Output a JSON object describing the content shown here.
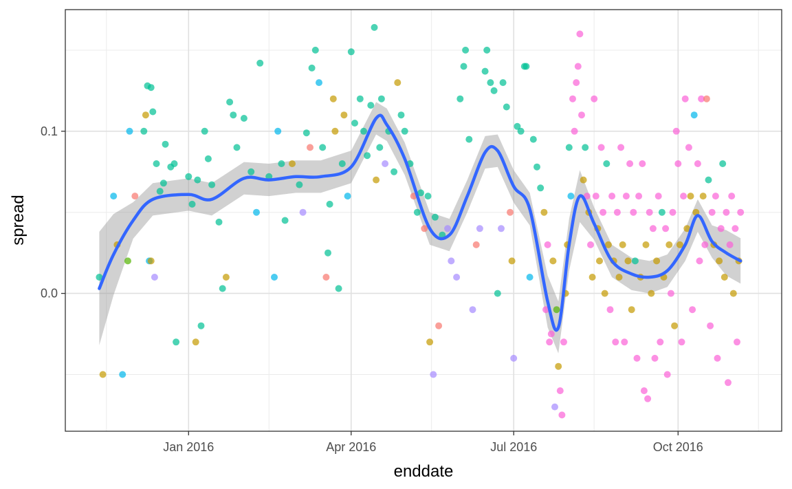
{
  "chart_data": {
    "type": "scatter",
    "title": "",
    "xlabel": "enddate",
    "ylabel": "spread",
    "x_ticks": [
      "Jan 2016",
      "Apr 2016",
      "Jul 2016",
      "Oct 2016"
    ],
    "x_tick_dates": [
      "2016-01-01",
      "2016-04-01",
      "2016-07-01",
      "2016-10-01"
    ],
    "x_minor_dates": [
      "2015-11-16",
      "2016-02-15",
      "2016-05-16",
      "2016-08-15",
      "2016-11-15"
    ],
    "xlim": [
      "2015-10-24",
      "2016-11-28"
    ],
    "y_ticks": [
      0.0,
      0.1
    ],
    "y_tick_labels": [
      "0.0",
      "0.1"
    ],
    "y_minor": [
      -0.05,
      0.05,
      0.15
    ],
    "ylim": [
      -0.085,
      0.175
    ],
    "grid": true,
    "legend": "none",
    "point_colors": [
      "#F8766D",
      "#C49A00",
      "#53B400",
      "#00C094",
      "#00B6EB",
      "#A58AFF",
      "#FB61D7"
    ],
    "points": [
      [
        "2015-11-12",
        0.01,
        3
      ],
      [
        "2015-11-14",
        -0.05,
        1
      ],
      [
        "2015-11-20",
        0.06,
        4
      ],
      [
        "2015-11-22",
        0.03,
        1
      ],
      [
        "2015-11-25",
        -0.05,
        4
      ],
      [
        "2015-11-28",
        0.02,
        2
      ],
      [
        "2015-11-29",
        0.1,
        4
      ],
      [
        "2015-12-02",
        0.06,
        0
      ],
      [
        "2015-12-07",
        0.1,
        3
      ],
      [
        "2015-12-08",
        0.11,
        1
      ],
      [
        "2015-12-09",
        0.128,
        3
      ],
      [
        "2015-12-10",
        0.02,
        4
      ],
      [
        "2015-12-11",
        0.02,
        1
      ],
      [
        "2015-12-11",
        0.127,
        3
      ],
      [
        "2015-12-12",
        0.112,
        3
      ],
      [
        "2015-12-13",
        0.01,
        5
      ],
      [
        "2015-12-14",
        0.08,
        3
      ],
      [
        "2015-12-16",
        0.063,
        3
      ],
      [
        "2015-12-18",
        0.068,
        3
      ],
      [
        "2015-12-19",
        0.092,
        3
      ],
      [
        "2015-12-22",
        0.078,
        3
      ],
      [
        "2015-12-24",
        0.08,
        3
      ],
      [
        "2015-12-25",
        -0.03,
        3
      ],
      [
        "2016-01-01",
        0.072,
        3
      ],
      [
        "2016-01-03",
        0.055,
        3
      ],
      [
        "2016-01-05",
        -0.03,
        1
      ],
      [
        "2016-01-06",
        0.07,
        3
      ],
      [
        "2016-01-08",
        -0.02,
        3
      ],
      [
        "2016-01-10",
        0.1,
        3
      ],
      [
        "2016-01-12",
        0.083,
        3
      ],
      [
        "2016-01-14",
        0.067,
        3
      ],
      [
        "2016-01-18",
        0.044,
        3
      ],
      [
        "2016-01-20",
        0.003,
        3
      ],
      [
        "2016-01-22",
        0.01,
        1
      ],
      [
        "2016-01-24",
        0.118,
        3
      ],
      [
        "2016-01-26",
        0.11,
        3
      ],
      [
        "2016-01-28",
        0.09,
        3
      ],
      [
        "2016-02-01",
        0.108,
        3
      ],
      [
        "2016-02-05",
        0.075,
        3
      ],
      [
        "2016-02-08",
        0.05,
        4
      ],
      [
        "2016-02-10",
        0.142,
        3
      ],
      [
        "2016-02-15",
        0.072,
        3
      ],
      [
        "2016-02-18",
        0.01,
        4
      ],
      [
        "2016-02-20",
        0.1,
        4
      ],
      [
        "2016-02-22",
        0.08,
        3
      ],
      [
        "2016-02-24",
        0.045,
        3
      ],
      [
        "2016-02-28",
        0.08,
        1
      ],
      [
        "2016-03-03",
        0.067,
        3
      ],
      [
        "2016-03-05",
        0.05,
        5
      ],
      [
        "2016-03-07",
        0.099,
        3
      ],
      [
        "2016-03-09",
        0.09,
        0
      ],
      [
        "2016-03-10",
        0.139,
        3
      ],
      [
        "2016-03-12",
        0.15,
        3
      ],
      [
        "2016-03-14",
        0.13,
        4
      ],
      [
        "2016-03-16",
        0.09,
        3
      ],
      [
        "2016-03-18",
        0.01,
        0
      ],
      [
        "2016-03-19",
        0.025,
        3
      ],
      [
        "2016-03-20",
        0.055,
        3
      ],
      [
        "2016-03-22",
        0.12,
        1
      ],
      [
        "2016-03-23",
        0.1,
        1
      ],
      [
        "2016-03-25",
        0.003,
        3
      ],
      [
        "2016-03-27",
        0.08,
        3
      ],
      [
        "2016-03-28",
        0.11,
        1
      ],
      [
        "2016-03-30",
        0.06,
        4
      ],
      [
        "2016-04-01",
        0.149,
        3
      ],
      [
        "2016-04-03",
        0.105,
        3
      ],
      [
        "2016-04-06",
        0.12,
        3
      ],
      [
        "2016-04-08",
        0.1,
        3
      ],
      [
        "2016-04-10",
        0.085,
        3
      ],
      [
        "2016-04-12",
        0.116,
        3
      ],
      [
        "2016-04-14",
        0.164,
        3
      ],
      [
        "2016-04-15",
        0.07,
        1
      ],
      [
        "2016-04-17",
        0.09,
        3
      ],
      [
        "2016-04-18",
        0.12,
        3
      ],
      [
        "2016-04-20",
        0.08,
        5
      ],
      [
        "2016-04-22",
        0.1,
        3
      ],
      [
        "2016-04-25",
        0.075,
        3
      ],
      [
        "2016-04-27",
        0.13,
        1
      ],
      [
        "2016-04-29",
        0.11,
        3
      ],
      [
        "2016-05-01",
        0.1,
        3
      ],
      [
        "2016-05-04",
        0.08,
        3
      ],
      [
        "2016-05-06",
        0.06,
        0
      ],
      [
        "2016-05-08",
        0.05,
        3
      ],
      [
        "2016-05-10",
        0.062,
        3
      ],
      [
        "2016-05-12",
        0.04,
        0
      ],
      [
        "2016-05-14",
        0.06,
        3
      ],
      [
        "2016-05-15",
        -0.03,
        1
      ],
      [
        "2016-05-17",
        -0.05,
        5
      ],
      [
        "2016-05-18",
        0.047,
        3
      ],
      [
        "2016-05-20",
        -0.02,
        0
      ],
      [
        "2016-05-22",
        0.036,
        3
      ],
      [
        "2016-05-25",
        0.04,
        5
      ],
      [
        "2016-05-27",
        0.02,
        5
      ],
      [
        "2016-05-30",
        0.01,
        5
      ],
      [
        "2016-06-01",
        0.12,
        3
      ],
      [
        "2016-06-03",
        0.14,
        3
      ],
      [
        "2016-06-04",
        0.15,
        3
      ],
      [
        "2016-06-06",
        0.095,
        3
      ],
      [
        "2016-06-08",
        -0.01,
        5
      ],
      [
        "2016-06-10",
        0.03,
        0
      ],
      [
        "2016-06-12",
        0.04,
        5
      ],
      [
        "2016-06-15",
        0.137,
        3
      ],
      [
        "2016-06-16",
        0.15,
        3
      ],
      [
        "2016-06-18",
        0.13,
        3
      ],
      [
        "2016-06-20",
        0.125,
        3
      ],
      [
        "2016-06-22",
        0.0,
        3
      ],
      [
        "2016-06-24",
        0.04,
        5
      ],
      [
        "2016-06-25",
        0.13,
        3
      ],
      [
        "2016-06-27",
        0.115,
        3
      ],
      [
        "2016-06-29",
        0.05,
        0
      ],
      [
        "2016-06-30",
        0.02,
        1
      ],
      [
        "2016-07-01",
        -0.04,
        5
      ],
      [
        "2016-07-03",
        0.103,
        3
      ],
      [
        "2016-07-05",
        0.1,
        3
      ],
      [
        "2016-07-07",
        0.14,
        3
      ],
      [
        "2016-07-08",
        0.14,
        3
      ],
      [
        "2016-07-10",
        0.01,
        4
      ],
      [
        "2016-07-12",
        0.095,
        3
      ],
      [
        "2016-07-14",
        0.078,
        3
      ],
      [
        "2016-07-16",
        0.065,
        3
      ],
      [
        "2016-07-18",
        0.05,
        1
      ],
      [
        "2016-07-19",
        -0.01,
        6
      ],
      [
        "2016-07-20",
        0.03,
        6
      ],
      [
        "2016-07-21",
        -0.03,
        6
      ],
      [
        "2016-07-22",
        -0.025,
        6
      ],
      [
        "2016-07-23",
        0.02,
        1
      ],
      [
        "2016-07-24",
        -0.07,
        5
      ],
      [
        "2016-07-25",
        -0.01,
        2
      ],
      [
        "2016-07-26",
        -0.045,
        1
      ],
      [
        "2016-07-27",
        -0.06,
        6
      ],
      [
        "2016-07-28",
        -0.075,
        6
      ],
      [
        "2016-07-29",
        -0.03,
        6
      ],
      [
        "2016-07-30",
        0.0,
        1
      ],
      [
        "2016-07-31",
        0.03,
        1
      ],
      [
        "2016-08-01",
        0.09,
        3
      ],
      [
        "2016-08-02",
        0.06,
        4
      ],
      [
        "2016-08-03",
        0.12,
        6
      ],
      [
        "2016-08-04",
        0.1,
        6
      ],
      [
        "2016-08-05",
        0.13,
        6
      ],
      [
        "2016-08-06",
        0.14,
        6
      ],
      [
        "2016-08-07",
        0.16,
        6
      ],
      [
        "2016-08-08",
        0.11,
        6
      ],
      [
        "2016-08-09",
        0.07,
        1
      ],
      [
        "2016-08-10",
        0.09,
        3
      ],
      [
        "2016-08-11",
        0.06,
        6
      ],
      [
        "2016-08-12",
        0.05,
        1
      ],
      [
        "2016-08-13",
        0.03,
        6
      ],
      [
        "2016-08-14",
        0.01,
        1
      ],
      [
        "2016-08-15",
        0.12,
        6
      ],
      [
        "2016-08-16",
        0.06,
        6
      ],
      [
        "2016-08-17",
        0.04,
        1
      ],
      [
        "2016-08-18",
        0.02,
        1
      ],
      [
        "2016-08-19",
        0.09,
        6
      ],
      [
        "2016-08-20",
        0.05,
        6
      ],
      [
        "2016-08-21",
        0.0,
        1
      ],
      [
        "2016-08-22",
        0.08,
        3
      ],
      [
        "2016-08-23",
        0.03,
        1
      ],
      [
        "2016-08-24",
        -0.01,
        6
      ],
      [
        "2016-08-25",
        0.06,
        6
      ],
      [
        "2016-08-26",
        0.02,
        1
      ],
      [
        "2016-08-27",
        -0.03,
        6
      ],
      [
        "2016-08-28",
        0.05,
        6
      ],
      [
        "2016-08-29",
        0.01,
        1
      ],
      [
        "2016-08-30",
        0.09,
        6
      ],
      [
        "2016-08-31",
        0.03,
        1
      ],
      [
        "2016-09-01",
        -0.03,
        6
      ],
      [
        "2016-09-02",
        0.06,
        6
      ],
      [
        "2016-09-03",
        0.02,
        1
      ],
      [
        "2016-09-04",
        0.08,
        6
      ],
      [
        "2016-09-05",
        -0.01,
        1
      ],
      [
        "2016-09-06",
        0.05,
        6
      ],
      [
        "2016-09-07",
        0.02,
        3
      ],
      [
        "2016-09-08",
        -0.04,
        6
      ],
      [
        "2016-09-09",
        0.06,
        6
      ],
      [
        "2016-09-10",
        0.01,
        1
      ],
      [
        "2016-09-11",
        0.08,
        6
      ],
      [
        "2016-09-12",
        -0.06,
        6
      ],
      [
        "2016-09-13",
        0.03,
        1
      ],
      [
        "2016-09-14",
        -0.065,
        6
      ],
      [
        "2016-09-15",
        0.05,
        6
      ],
      [
        "2016-09-16",
        0.0,
        1
      ],
      [
        "2016-09-17",
        0.04,
        6
      ],
      [
        "2016-09-18",
        -0.04,
        6
      ],
      [
        "2016-09-19",
        0.02,
        1
      ],
      [
        "2016-09-20",
        0.06,
        6
      ],
      [
        "2016-09-21",
        -0.03,
        6
      ],
      [
        "2016-09-22",
        0.05,
        3
      ],
      [
        "2016-09-23",
        0.01,
        1
      ],
      [
        "2016-09-24",
        0.04,
        6
      ],
      [
        "2016-09-25",
        -0.05,
        6
      ],
      [
        "2016-09-26",
        0.03,
        1
      ],
      [
        "2016-09-27",
        0.0,
        6
      ],
      [
        "2016-09-28",
        0.05,
        6
      ],
      [
        "2016-09-29",
        -0.02,
        1
      ],
      [
        "2016-09-30",
        0.1,
        6
      ],
      [
        "2016-10-01",
        0.08,
        6
      ],
      [
        "2016-10-02",
        0.03,
        1
      ],
      [
        "2016-10-03",
        -0.03,
        6
      ],
      [
        "2016-10-04",
        0.06,
        6
      ],
      [
        "2016-10-05",
        0.12,
        6
      ],
      [
        "2016-10-06",
        0.04,
        1
      ],
      [
        "2016-10-07",
        0.09,
        6
      ],
      [
        "2016-10-08",
        0.06,
        1
      ],
      [
        "2016-10-09",
        -0.01,
        6
      ],
      [
        "2016-10-10",
        0.11,
        4
      ],
      [
        "2016-10-11",
        0.05,
        1
      ],
      [
        "2016-10-12",
        0.08,
        6
      ],
      [
        "2016-10-13",
        0.02,
        6
      ],
      [
        "2016-10-14",
        0.12,
        6
      ],
      [
        "2016-10-15",
        0.06,
        1
      ],
      [
        "2016-10-16",
        0.03,
        6
      ],
      [
        "2016-10-17",
        0.12,
        0
      ],
      [
        "2016-10-18",
        0.07,
        3
      ],
      [
        "2016-10-19",
        -0.02,
        6
      ],
      [
        "2016-10-20",
        0.05,
        6
      ],
      [
        "2016-10-21",
        0.03,
        1
      ],
      [
        "2016-10-22",
        0.06,
        6
      ],
      [
        "2016-10-23",
        -0.04,
        6
      ],
      [
        "2016-10-24",
        0.02,
        1
      ],
      [
        "2016-10-25",
        0.04,
        6
      ],
      [
        "2016-10-26",
        0.08,
        3
      ],
      [
        "2016-10-27",
        0.01,
        1
      ],
      [
        "2016-10-28",
        0.05,
        6
      ],
      [
        "2016-10-29",
        -0.055,
        6
      ],
      [
        "2016-10-30",
        0.03,
        6
      ],
      [
        "2016-10-31",
        0.06,
        6
      ],
      [
        "2016-11-01",
        0.0,
        1
      ],
      [
        "2016-11-02",
        0.04,
        6
      ],
      [
        "2016-11-03",
        -0.03,
        6
      ],
      [
        "2016-11-04",
        0.02,
        1
      ],
      [
        "2016-11-05",
        0.05,
        6
      ]
    ],
    "smooth_line": [
      [
        "2015-11-12",
        0.003
      ],
      [
        "2015-11-20",
        0.024
      ],
      [
        "2015-12-01",
        0.045
      ],
      [
        "2015-12-12",
        0.058
      ],
      [
        "2016-01-01",
        0.061
      ],
      [
        "2016-01-14",
        0.058
      ],
      [
        "2016-02-01",
        0.071
      ],
      [
        "2016-02-15",
        0.07
      ],
      [
        "2016-03-01",
        0.072
      ],
      [
        "2016-03-15",
        0.072
      ],
      [
        "2016-04-01",
        0.078
      ],
      [
        "2016-04-15",
        0.108
      ],
      [
        "2016-04-21",
        0.104
      ],
      [
        "2016-05-01",
        0.083
      ],
      [
        "2016-05-15",
        0.04
      ],
      [
        "2016-05-26",
        0.036
      ],
      [
        "2016-06-05",
        0.06
      ],
      [
        "2016-06-15",
        0.087
      ],
      [
        "2016-06-22",
        0.088
      ],
      [
        "2016-07-01",
        0.066
      ],
      [
        "2016-07-10",
        0.052
      ],
      [
        "2016-07-20",
        -0.005
      ],
      [
        "2016-07-26",
        -0.021
      ],
      [
        "2016-08-01",
        0.03
      ],
      [
        "2016-08-07",
        0.06
      ],
      [
        "2016-08-15",
        0.043
      ],
      [
        "2016-08-25",
        0.02
      ],
      [
        "2016-09-05",
        0.012
      ],
      [
        "2016-09-15",
        0.01
      ],
      [
        "2016-09-25",
        0.014
      ],
      [
        "2016-10-05",
        0.03
      ],
      [
        "2016-10-12",
        0.048
      ],
      [
        "2016-10-20",
        0.032
      ],
      [
        "2016-10-28",
        0.025
      ],
      [
        "2016-11-05",
        0.02
      ]
    ]
  }
}
